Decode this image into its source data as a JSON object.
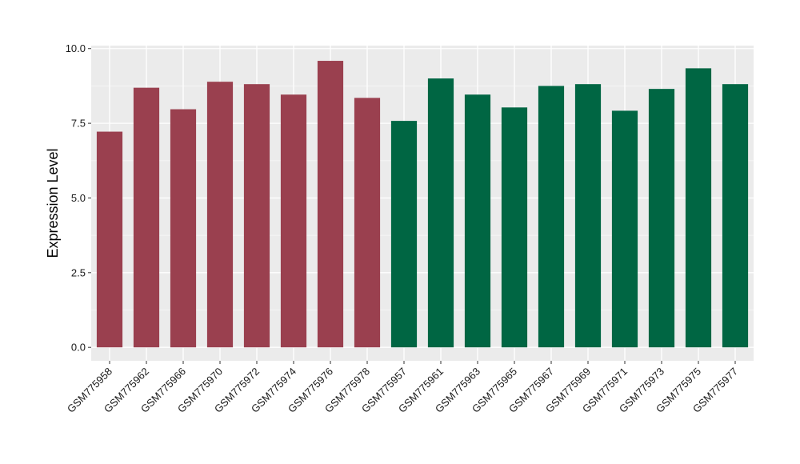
{
  "chart_data": {
    "type": "bar",
    "title": "",
    "xlabel": "",
    "ylabel": "Expression Level",
    "ylim": [
      -0.45,
      10.1
    ],
    "yticks": [
      0.0,
      2.5,
      5.0,
      7.5,
      10.0
    ],
    "ytick_labels": [
      "0.0",
      "2.5",
      "5.0",
      "7.5",
      "10.0"
    ],
    "grid": true,
    "legend": "none",
    "categories": [
      "GSM775958",
      "GSM775962",
      "GSM775966",
      "GSM775970",
      "GSM775972",
      "GSM775974",
      "GSM775976",
      "GSM775978",
      "GSM775957",
      "GSM775961",
      "GSM775963",
      "GSM775965",
      "GSM775967",
      "GSM775969",
      "GSM775971",
      "GSM775973",
      "GSM775975",
      "GSM775977"
    ],
    "values": [
      7.22,
      8.69,
      7.97,
      8.89,
      8.81,
      8.46,
      9.59,
      8.35,
      7.58,
      9.0,
      8.46,
      8.03,
      8.75,
      8.81,
      7.92,
      8.65,
      9.34,
      8.81
    ],
    "groups": [
      0,
      0,
      0,
      0,
      0,
      0,
      0,
      0,
      1,
      1,
      1,
      1,
      1,
      1,
      1,
      1,
      1,
      1
    ],
    "group_colors": [
      "#9a404f",
      "#006643"
    ],
    "colors": {
      "panel": "#ebebeb",
      "grid_major": "#ffffff",
      "grid_minor": "#f5f5f5",
      "tick": "#333333"
    }
  }
}
